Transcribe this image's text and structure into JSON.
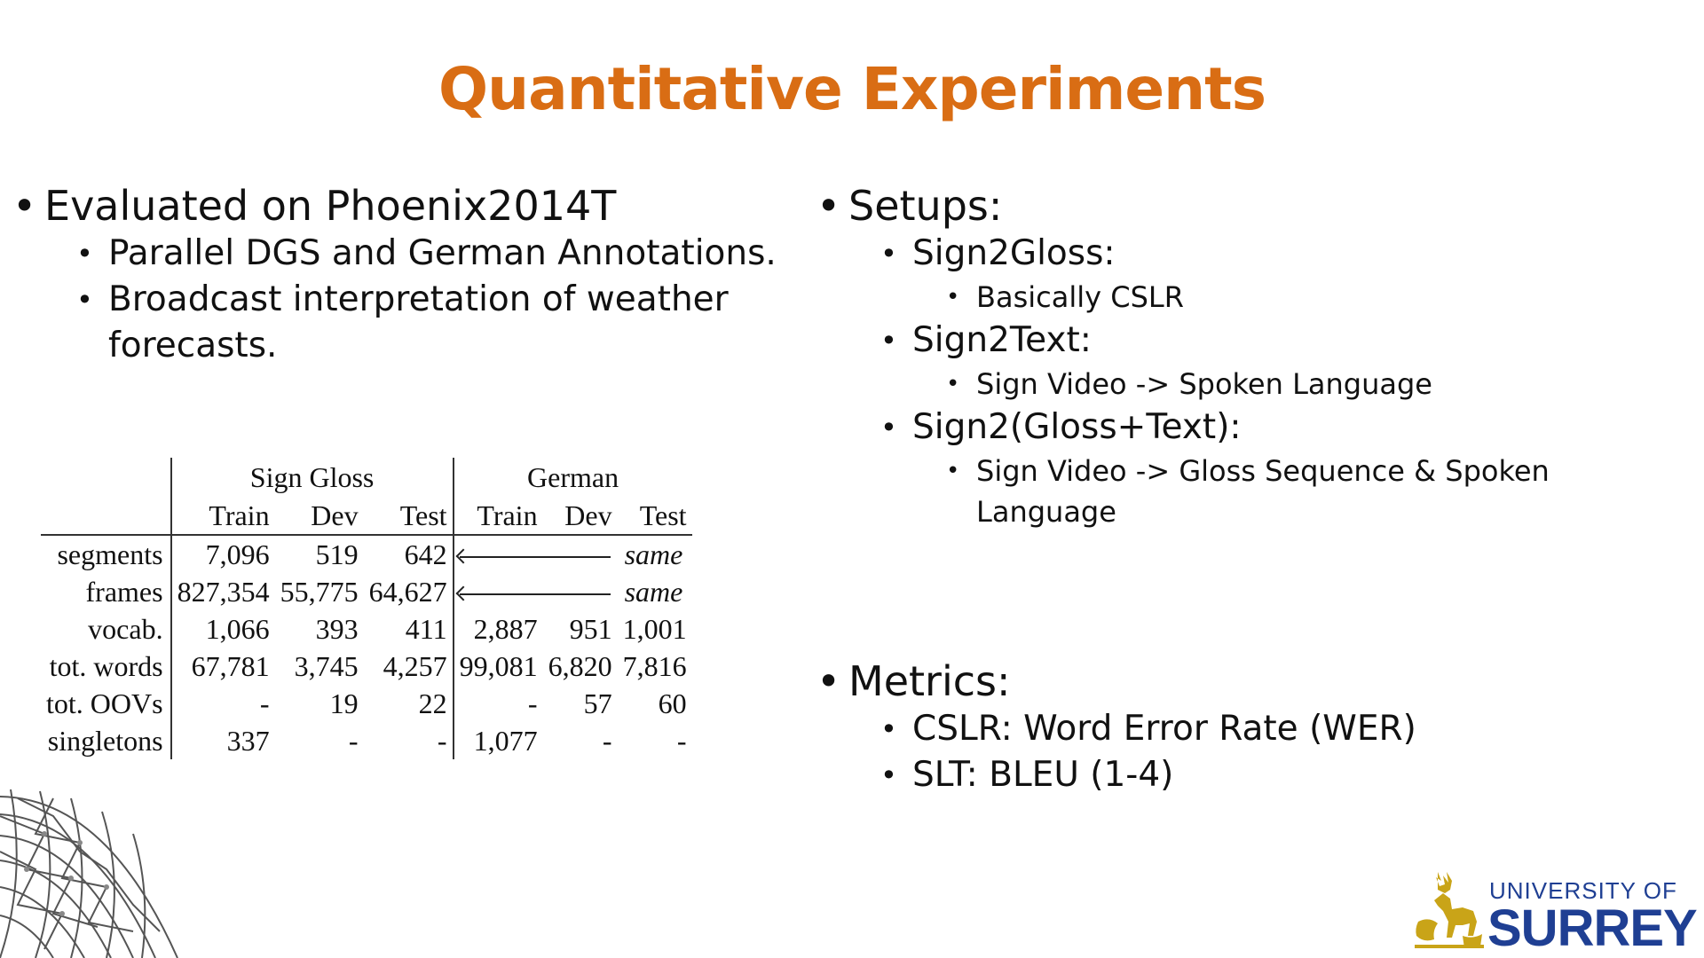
{
  "slide": {
    "title": "Quantitative Experiments",
    "left_bullets": {
      "main": "Evaluated on Phoenix2014T",
      "sub1": "Parallel DGS and German Annotations.",
      "sub2": "Broadcast interpretation of weather forecasts."
    },
    "setups": {
      "heading": "Setups:",
      "items": [
        {
          "label": "Sign2Gloss:",
          "detail": "Basically CSLR"
        },
        {
          "label": "Sign2Text:",
          "detail": "Sign Video -> Spoken Language"
        },
        {
          "label": "Sign2(Gloss+Text):",
          "detail": "Sign Video -> Gloss Sequence & Spoken Language"
        }
      ]
    },
    "metrics": {
      "heading": "Metrics:",
      "items": [
        "CSLR: Word Error Rate (WER)",
        "SLT: BLEU (1-4)"
      ]
    },
    "table": {
      "group_headers": [
        "Sign Gloss",
        "German"
      ],
      "column_headers": [
        "Train",
        "Dev",
        "Test",
        "Train",
        "Dev",
        "Test"
      ],
      "same_label": "same",
      "rows": [
        {
          "label": "segments",
          "gloss": [
            "7,096",
            "519",
            "642"
          ],
          "german_same": true
        },
        {
          "label": "frames",
          "gloss": [
            "827,354",
            "55,775",
            "64,627"
          ],
          "german_same": true
        },
        {
          "label": "vocab.",
          "gloss": [
            "1,066",
            "393",
            "411"
          ],
          "german": [
            "2,887",
            "951",
            "1,001"
          ]
        },
        {
          "label": "tot. words",
          "gloss": [
            "67,781",
            "3,745",
            "4,257"
          ],
          "german": [
            "99,081",
            "6,820",
            "7,816"
          ]
        },
        {
          "label": "tot. OOVs",
          "gloss": [
            "-",
            "19",
            "22"
          ],
          "german": [
            "-",
            "57",
            "60"
          ]
        },
        {
          "label": "singletons",
          "gloss": [
            "337",
            "-",
            "-"
          ],
          "german": [
            "1,077",
            "-",
            "-"
          ]
        }
      ]
    },
    "logo": {
      "line1": "UNIVERSITY OF",
      "line2": "SURREY",
      "color": "#1f3f93"
    },
    "title_color": "#d96d14"
  }
}
